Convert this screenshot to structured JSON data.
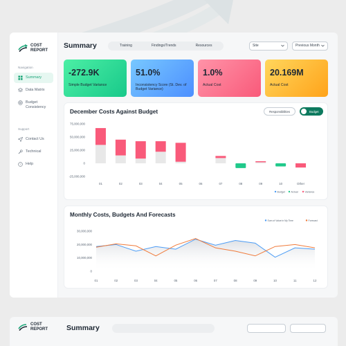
{
  "app": {
    "logo_line1": "COST",
    "logo_line2": "REPORT"
  },
  "sidebar": {
    "navigation_heading": "Navigation",
    "items": [
      {
        "label": "Summary",
        "icon": "grid-icon",
        "active": true
      },
      {
        "label": "Data Matrix",
        "icon": "layers-icon"
      },
      {
        "label": "Budget Consistency",
        "icon": "target-icon"
      }
    ],
    "support_heading": "Support",
    "support_items": [
      {
        "label": "Contact Us",
        "icon": "send-icon"
      },
      {
        "label": "Technical",
        "icon": "wrench-icon"
      },
      {
        "label": "Help",
        "icon": "help-icon"
      }
    ]
  },
  "header": {
    "title": "Summary",
    "tabs": [
      "Training",
      "Findings/Trends",
      "Resources"
    ],
    "site_select": "Site",
    "period_select": "Previous Month"
  },
  "kpis": [
    {
      "value": "-272.9K",
      "label": "Simple Budget Variance",
      "color": "#18c98a"
    },
    {
      "value": "51.0%",
      "label": "Inconsistency Score (St. Dev. of Budget Variance)",
      "color": "#4c8fff"
    },
    {
      "value": "1.0%",
      "label": "Actual Cost",
      "color": "#f95a7a"
    },
    {
      "value": "20.169M",
      "label": "Actual Cost",
      "color": "#ffa31a"
    }
  ],
  "december_chart": {
    "title": "December Costs Against Budget",
    "responsibilities_label": "Responsibilities",
    "budget_toggle_label": "Budget"
  },
  "monthly_chart": {
    "title": "Monthly Costs, Budgets And Forecasts"
  },
  "chart_data": [
    {
      "type": "bar",
      "title": "December Costs Against Budget",
      "categories": [
        "01",
        "02",
        "03",
        "04",
        "05",
        "06",
        "07",
        "08",
        "09",
        "10",
        "Other"
      ],
      "yticks": [
        "75,000,000",
        "50,000,000",
        "25,000,000",
        "0",
        "-25,000,000"
      ],
      "ylim": [
        -25000000,
        75000000
      ],
      "series": [
        {
          "name": "Budget",
          "values": [
            35000000,
            15000000,
            9000000,
            22000000,
            3000000,
            0,
            10000000,
            0,
            2000000,
            0,
            -3000000
          ],
          "color": "#e8e8e8"
        },
        {
          "name": "Actual",
          "values": [
            0,
            0,
            0,
            0,
            0,
            0,
            0,
            -9000000,
            0,
            -6000000,
            0
          ],
          "color": "#20c98b"
        },
        {
          "name": "Variance",
          "values": [
            32000000,
            30000000,
            33000000,
            20000000,
            36000000,
            0,
            4000000,
            0,
            2000000,
            0,
            -5000000
          ],
          "color": "#f95a7a"
        }
      ],
      "legend": [
        "Budget",
        "Actual",
        "Variance"
      ],
      "legend_position": "bottom-right"
    },
    {
      "type": "line",
      "title": "Monthly Costs, Budgets And Forecasts",
      "categories": [
        "01",
        "02",
        "03",
        "04",
        "05",
        "06",
        "07",
        "08",
        "09",
        "10",
        "11",
        "12"
      ],
      "yticks": [
        "30,000,000",
        "20,000,000",
        "10,000,000",
        "0"
      ],
      "ylim": [
        0,
        30000000
      ],
      "series": [
        {
          "name": "Sum of Value in My Time",
          "color": "#4c9cf5",
          "values": [
            18500000,
            20000000,
            15000000,
            18500000,
            16500000,
            24000000,
            19500000,
            23000000,
            21000000,
            10500000,
            17500000,
            16500000
          ]
        },
        {
          "name": "Forecast",
          "color": "#f07a3a",
          "values": [
            18000000,
            20500000,
            19000000,
            11500000,
            19500000,
            24500000,
            17500000,
            15000000,
            11500000,
            18500000,
            20000000,
            17500000
          ]
        }
      ],
      "area": true,
      "legend_position": "top-right"
    }
  ]
}
